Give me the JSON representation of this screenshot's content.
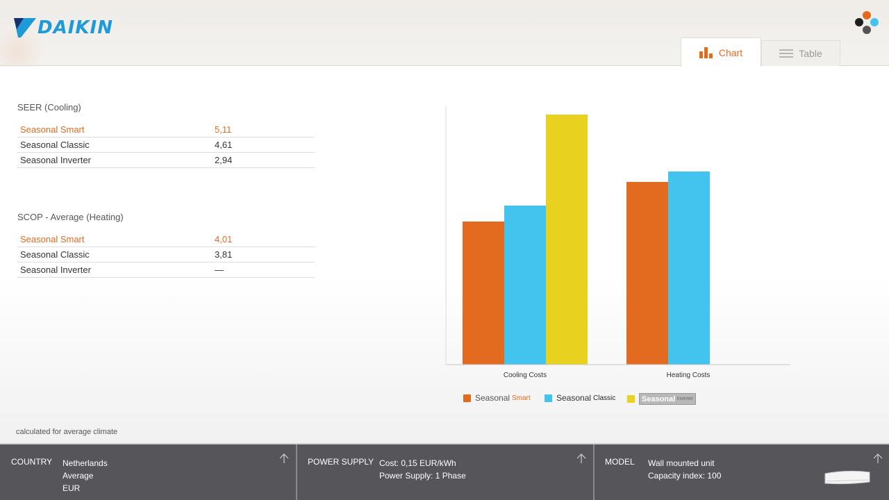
{
  "header": {
    "brand": "DAIKIN",
    "tabs": [
      {
        "label": "Chart",
        "active": true
      },
      {
        "label": "Table",
        "active": false
      }
    ]
  },
  "seer": {
    "title": "SEER (Cooling)",
    "rows": [
      {
        "name": "Seasonal Smart",
        "value": "5,11"
      },
      {
        "name": "Seasonal Classic",
        "value": "4,61"
      },
      {
        "name": "Seasonal Inverter",
        "value": "2,94"
      }
    ]
  },
  "scop": {
    "title": "SCOP - Average (Heating)",
    "rows": [
      {
        "name": "Seasonal Smart",
        "value": "4,01"
      },
      {
        "name": "Seasonal Classic",
        "value": "3,81"
      },
      {
        "name": "Seasonal Inverter",
        "value": "—"
      }
    ]
  },
  "footnote": "calculated for average climate",
  "colors": {
    "accent": "#e36b1f",
    "smart": "#e36b1f",
    "classic": "#43c4ef",
    "inverter": "#e8d21f",
    "brand_blue": "#1e9ad6",
    "footer_bg": "#56565a"
  },
  "chart_data": {
    "type": "bar",
    "categories": [
      "Cooling Costs",
      "Heating Costs"
    ],
    "series": [
      {
        "name": "Seasonal Smart",
        "values": [
          206,
          263
        ]
      },
      {
        "name": "Seasonal Classic",
        "values": [
          229,
          278
        ]
      },
      {
        "name": "Seasonal Inverter",
        "values": [
          360,
          null
        ]
      }
    ],
    "ylim": [
      0,
      372
    ],
    "grid": false,
    "legend": "bottom"
  },
  "legend": {
    "smart": {
      "word1": "Seasonal",
      "word2": "Smart"
    },
    "classic": {
      "word1": "Seasonal",
      "word2": "Classic"
    },
    "inverter": {
      "word1": "Seasonal",
      "word2": "Inverter"
    }
  },
  "footer": {
    "country": {
      "label": "COUNTRY",
      "lines": [
        "Netherlands",
        "Average",
        "EUR"
      ]
    },
    "power": {
      "label": "POWER SUPPLY",
      "lines": [
        "Cost: 0,15 EUR/kWh",
        "Power Supply: 1 Phase"
      ]
    },
    "model": {
      "label": "MODEL",
      "lines": [
        "Wall mounted unit",
        "Capacity index: 100"
      ]
    }
  }
}
